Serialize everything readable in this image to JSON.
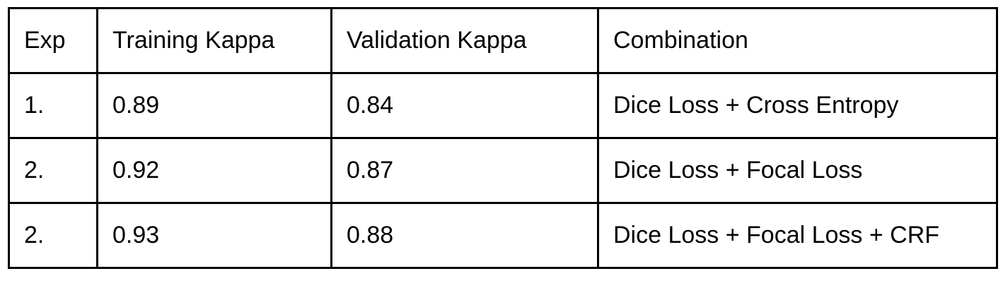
{
  "table": {
    "headers": [
      "Exp",
      "Training Kappa",
      "Validation Kappa",
      "Combination"
    ],
    "rows": [
      [
        "1.",
        "0.89",
        "0.84",
        "Dice Loss + Cross Entropy"
      ],
      [
        "2.",
        "0.92",
        "0.87",
        "Dice Loss + Focal Loss"
      ],
      [
        "2.",
        "0.93",
        "0.88",
        "Dice Loss + Focal Loss + CRF"
      ]
    ]
  }
}
